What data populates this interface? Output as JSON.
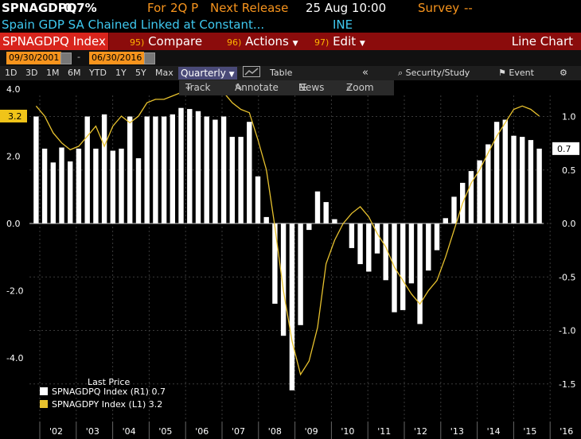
{
  "header": {
    "ticker": "SPNAGDPQ",
    "value": "0.7%",
    "for_label": "For",
    "period": "2Q P",
    "next_release_label": "Next Release",
    "next_release": "25 Aug 10:00",
    "survey_label": "Survey",
    "survey_value": "--",
    "description": "Spain GDP SA Chained Linked at Constant...",
    "source": "INE"
  },
  "toolbar": {
    "security": "SPNAGDPQ Index",
    "compare_num": "95)",
    "compare": "Compare",
    "actions_num": "96)",
    "actions": "Actions",
    "edit_num": "97)",
    "edit": "Edit",
    "view": "Line Chart"
  },
  "dates": {
    "start": "09/30/2001",
    "sep": "-",
    "end": "06/30/2016"
  },
  "ranges": [
    "1D",
    "3D",
    "1M",
    "6M",
    "YTD",
    "1Y",
    "5Y",
    "Max"
  ],
  "frequency": "Quarterly",
  "table_label": "Table",
  "security_study": "Security/Study",
  "event": "Event",
  "tools": {
    "track": "Track",
    "annotate": "Annotate",
    "news": "News",
    "zoom": "Zoom"
  },
  "colors": {
    "bar": "#ffffff",
    "line": "#e8c22e",
    "accent": "#f7941d",
    "toolbar": "#8b0c0c"
  },
  "chart_data": {
    "type": "bar",
    "x_labels": [
      "'02",
      "'03",
      "'04",
      "'05",
      "'06",
      "'07",
      "'08",
      "'09",
      "'10",
      "'11",
      "'12",
      "'13",
      "'14",
      "'15",
      "'16"
    ],
    "left_axis": {
      "ticks": [
        "4.0",
        "2.0",
        "0.0",
        "-2.0",
        "-4.0"
      ],
      "range": [
        -5.0,
        5.6
      ]
    },
    "right_axis": {
      "ticks": [
        "1.0",
        "0.5",
        "0.0",
        "-0.5",
        "-1.0",
        "-1.5"
      ],
      "range": [
        -1.55,
        1.3
      ]
    },
    "series": [
      {
        "name": "SPNAGDPQ Index",
        "axis": "R1",
        "style": "bar",
        "values": [
          1.0,
          0.7,
          0.57,
          0.71,
          0.58,
          0.7,
          1.0,
          0.7,
          1.02,
          0.68,
          0.7,
          1.0,
          0.61,
          1.0,
          1.0,
          1.0,
          1.02,
          1.08,
          1.07,
          1.05,
          1.0,
          0.97,
          1.0,
          0.81,
          0.81,
          0.95,
          0.44,
          0.06,
          -0.75,
          -1.05,
          -1.56,
          -0.95,
          -0.06,
          0.3,
          0.2,
          0.04,
          0.0,
          -0.23,
          -0.38,
          -0.45,
          -0.28,
          -0.53,
          -0.83,
          -0.81,
          -0.56,
          -0.94,
          -0.44,
          -0.25,
          0.05,
          0.25,
          0.38,
          0.49,
          0.59,
          0.74,
          0.95,
          0.97,
          0.82,
          0.81,
          0.78,
          0.7
        ]
      },
      {
        "name": "SPNAGDPY Index",
        "axis": "L1",
        "style": "line",
        "values": [
          3.5,
          3.2,
          2.7,
          2.4,
          2.2,
          2.3,
          2.6,
          2.9,
          2.3,
          2.9,
          3.2,
          3.0,
          3.2,
          3.6,
          3.7,
          3.7,
          3.8,
          3.9,
          4.0,
          4.2,
          4.2,
          4.1,
          3.9,
          3.6,
          3.4,
          3.3,
          2.5,
          1.6,
          -0.1,
          -2.0,
          -3.5,
          -4.5,
          -4.1,
          -3.1,
          -1.2,
          -0.5,
          0.0,
          0.3,
          0.5,
          0.2,
          -0.3,
          -0.7,
          -1.3,
          -1.7,
          -2.1,
          -2.4,
          -2.0,
          -1.7,
          -1.0,
          -0.2,
          0.6,
          1.2,
          1.6,
          2.1,
          2.6,
          3.0,
          3.4,
          3.5,
          3.4,
          3.2
        ]
      }
    ],
    "last_price_label": "Last Price",
    "legend": [
      {
        "name": "SPNAGDPQ Index",
        "axis": "(R1)",
        "last": "0.7",
        "color": "#ffffff"
      },
      {
        "name": "SPNAGDPY Index",
        "axis": "(L1)",
        "last": "3.2",
        "color": "#e8c22e"
      }
    ],
    "left_last_tag": "3.2",
    "right_last_tag": "0.7"
  }
}
